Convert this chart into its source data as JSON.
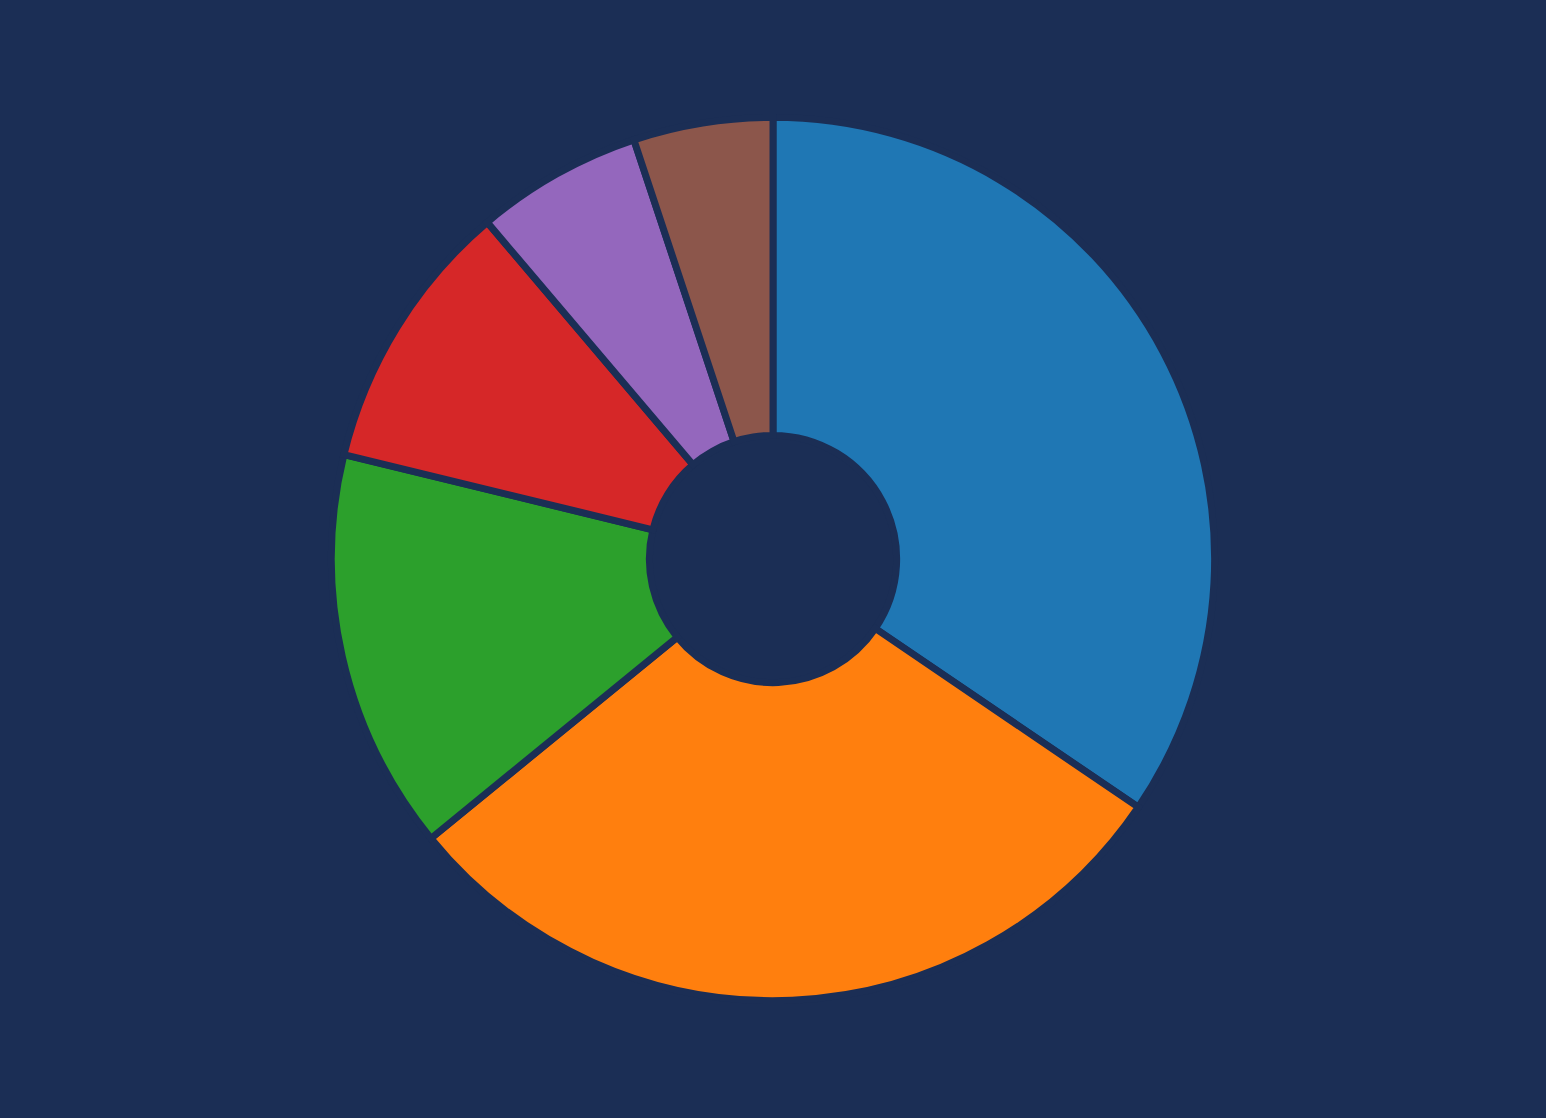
{
  "chart_data": {
    "type": "donut",
    "categories": [
      null,
      null,
      null,
      null,
      null,
      null
    ],
    "values": [
      34.5,
      29.6,
      14.7,
      10.0,
      6.1,
      5.1
    ],
    "colors": [
      "#1f77b4",
      "#ff7f0e",
      "#2ca02c",
      "#d62728",
      "#9467bd",
      "#8c564b"
    ],
    "legend": false
  }
}
